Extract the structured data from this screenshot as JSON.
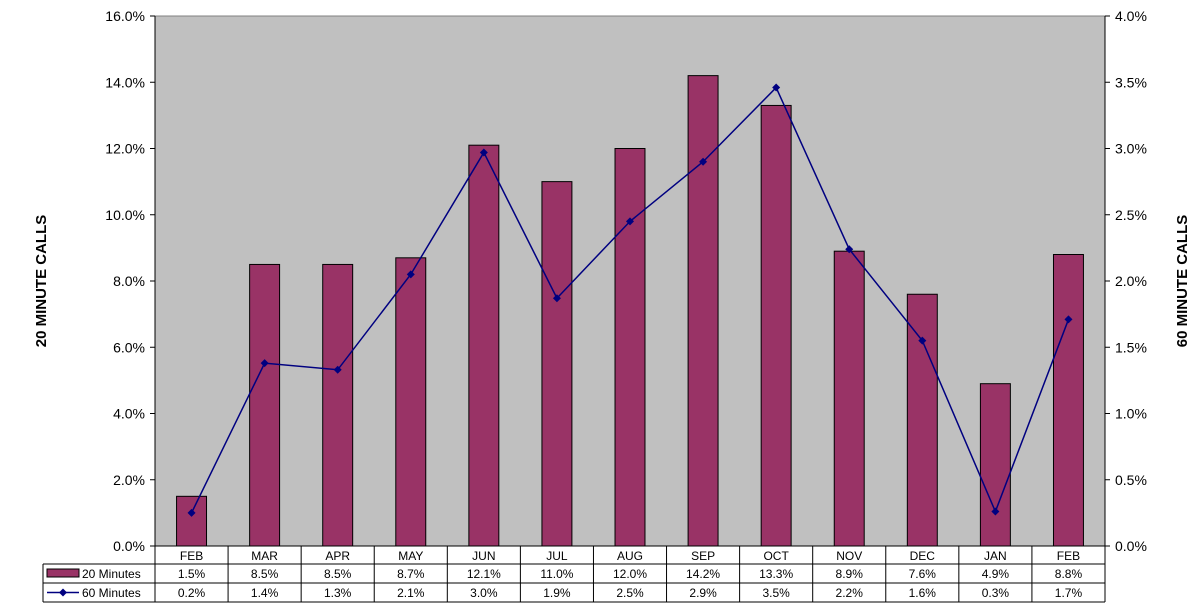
{
  "chart_data": {
    "type": "bar",
    "categories": [
      "FEB",
      "MAR",
      "APR",
      "MAY",
      "JUN",
      "JUL",
      "AUG",
      "SEP",
      "OCT",
      "NOV",
      "DEC",
      "JAN",
      "FEB"
    ],
    "series": [
      {
        "name": "20 Minutes",
        "type": "bar",
        "axis": "left",
        "color": "#993366",
        "values": [
          1.5,
          8.5,
          8.5,
          8.7,
          12.1,
          11.0,
          12.0,
          14.2,
          13.3,
          8.9,
          7.6,
          4.9,
          8.8
        ],
        "labels": [
          "1.5%",
          "8.5%",
          "8.5%",
          "8.7%",
          "12.1%",
          "11.0%",
          "12.0%",
          "14.2%",
          "13.3%",
          "8.9%",
          "7.6%",
          "4.9%",
          "8.8%"
        ]
      },
      {
        "name": "60 Minutes",
        "type": "line",
        "axis": "right",
        "color": "#000080",
        "values": [
          0.25,
          1.38,
          1.33,
          2.05,
          2.97,
          1.87,
          2.45,
          2.9,
          3.46,
          2.24,
          1.55,
          0.26,
          1.71
        ],
        "labels": [
          "0.2%",
          "1.4%",
          "1.3%",
          "2.1%",
          "3.0%",
          "1.9%",
          "2.5%",
          "2.9%",
          "3.5%",
          "2.2%",
          "1.6%",
          "0.3%",
          "1.7%"
        ]
      }
    ],
    "ylabel": "20 MINUTE CALLS",
    "y2label": "60 MINUTE CALLS",
    "ylim": [
      0,
      16
    ],
    "y2lim": [
      0,
      4
    ],
    "yticks": [
      "0.0%",
      "2.0%",
      "4.0%",
      "6.0%",
      "8.0%",
      "10.0%",
      "12.0%",
      "14.0%",
      "16.0%"
    ],
    "y2ticks": [
      "0.0%",
      "0.5%",
      "1.0%",
      "1.5%",
      "2.0%",
      "2.5%",
      "3.0%",
      "3.5%",
      "4.0%"
    ],
    "data_table": true,
    "plot_background": "#c0c0c0",
    "grid": false
  }
}
